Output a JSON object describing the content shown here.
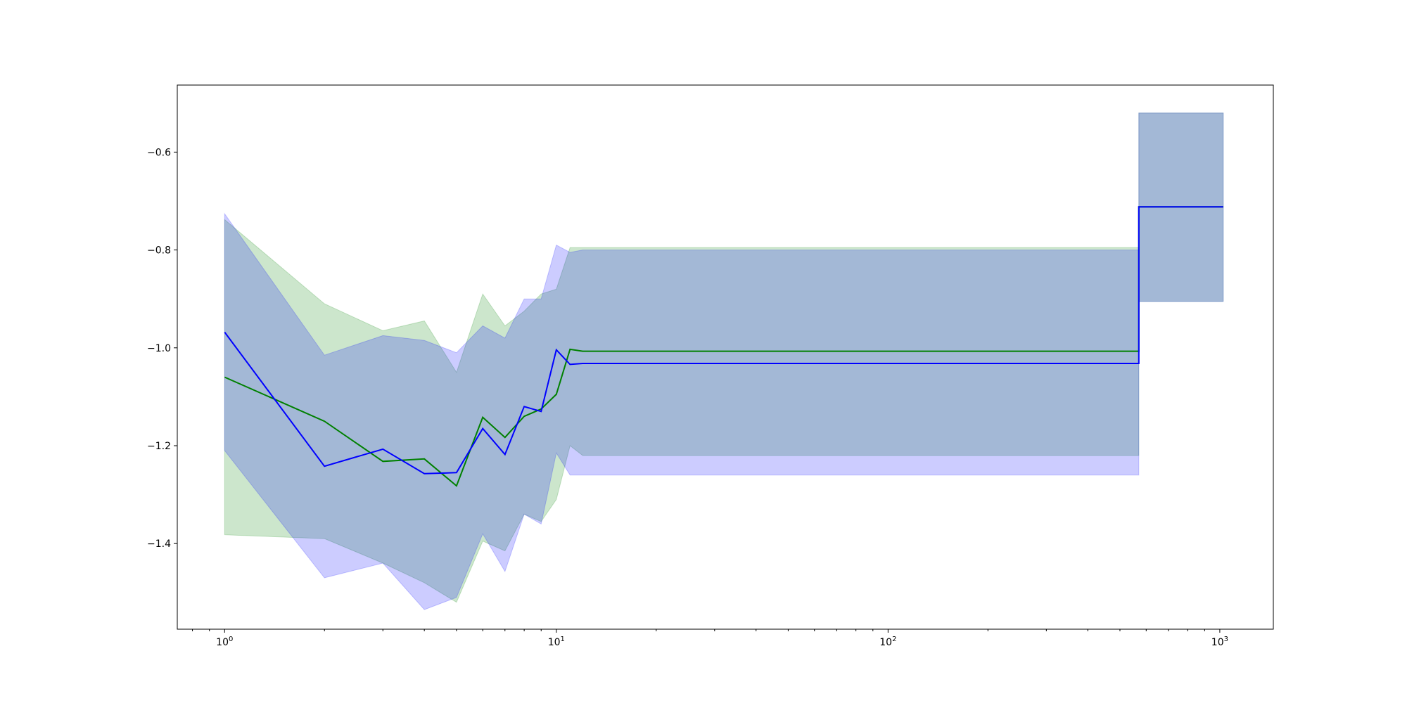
{
  "chart_data": {
    "type": "line",
    "xscale": "log",
    "xlim": [
      0.72,
      1450
    ],
    "ylim": [
      -1.575,
      -0.463
    ],
    "title": "",
    "xlabel": "",
    "ylabel": "",
    "grid": false,
    "legend": "none",
    "x_ticks": [
      {
        "value": 1,
        "base": "10",
        "exp": "0"
      },
      {
        "value": 10,
        "base": "10",
        "exp": "1"
      },
      {
        "value": 100,
        "base": "10",
        "exp": "2"
      },
      {
        "value": 1000,
        "base": "10",
        "exp": "3"
      }
    ],
    "y_ticks": [
      {
        "value": -0.6,
        "label": "−0.6"
      },
      {
        "value": -0.8,
        "label": "−0.8"
      },
      {
        "value": -1.0,
        "label": "−1.0"
      },
      {
        "value": -1.2,
        "label": "−1.2"
      },
      {
        "value": -1.4,
        "label": "−1.4"
      }
    ],
    "series": [
      {
        "color": "#008000",
        "x": [
          1,
          2,
          3,
          4,
          5,
          6,
          7,
          8,
          9,
          10,
          11,
          12,
          570,
          570,
          1024
        ],
        "y": [
          -1.06,
          -1.15,
          -1.232,
          -1.227,
          -1.282,
          -1.142,
          -1.183,
          -1.14,
          -1.125,
          -1.095,
          -1.003,
          -1.007,
          -1.007,
          -0.712,
          -0.712
        ],
        "lower": [
          -1.382,
          -1.39,
          -1.44,
          -1.48,
          -1.52,
          -1.395,
          -1.415,
          -1.34,
          -1.355,
          -1.31,
          -1.2,
          -1.22,
          -1.22,
          -0.905,
          -0.905
        ],
        "upper": [
          -0.738,
          -0.91,
          -0.965,
          -0.945,
          -1.05,
          -0.89,
          -0.955,
          -0.925,
          -0.89,
          -0.88,
          -0.795,
          -0.795,
          -0.795,
          -0.52,
          -0.52
        ],
        "band_color": "#008000",
        "band_opacity": 0.2
      },
      {
        "color": "#0000ff",
        "x": [
          1,
          2,
          3,
          4,
          5,
          6,
          7,
          8,
          9,
          10,
          11,
          12,
          570,
          570,
          1024
        ],
        "y": [
          -0.968,
          -1.242,
          -1.207,
          -1.257,
          -1.255,
          -1.165,
          -1.218,
          -1.12,
          -1.13,
          -1.004,
          -1.034,
          -1.032,
          -1.032,
          -0.712,
          -0.712
        ],
        "lower": [
          -1.21,
          -1.47,
          -1.44,
          -1.535,
          -1.51,
          -1.38,
          -1.457,
          -1.34,
          -1.36,
          -1.215,
          -1.26,
          -1.26,
          -1.26,
          -0.905,
          -0.905
        ],
        "upper": [
          -0.726,
          -1.015,
          -0.975,
          -0.985,
          -1.01,
          -0.955,
          -0.98,
          -0.9,
          -0.9,
          -0.79,
          -0.805,
          -0.8,
          -0.8,
          -0.52,
          -0.52
        ],
        "band_color": "#0000ff",
        "band_opacity": 0.2
      }
    ]
  }
}
